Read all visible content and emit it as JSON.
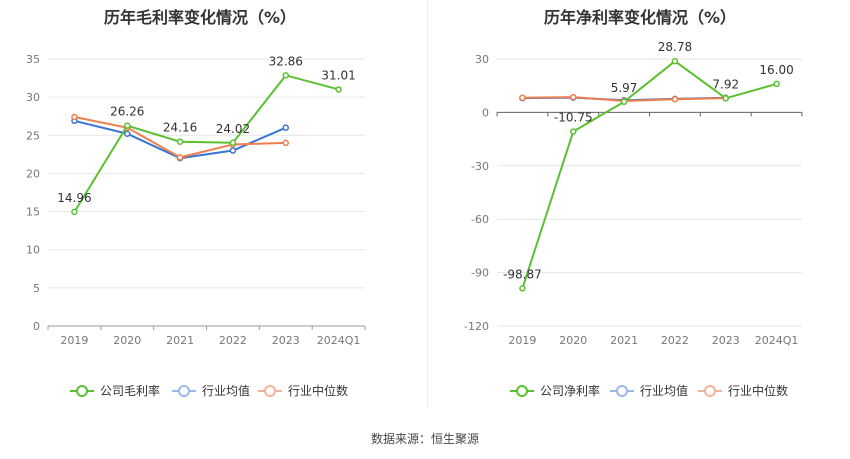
{
  "source_label": "数据来源：恒生聚源",
  "chart_data": [
    {
      "type": "line",
      "title": "历年毛利率变化情况（%）",
      "categories": [
        "2019",
        "2020",
        "2021",
        "2022",
        "2023",
        "2024Q1"
      ],
      "ylim": [
        0,
        35
      ],
      "yticks": [
        0,
        5,
        10,
        15,
        20,
        25,
        30,
        35
      ],
      "grid": true,
      "legend_position": "bottom",
      "series": [
        {
          "name": "公司毛利率",
          "color": "#5ac02f",
          "values": [
            14.96,
            26.26,
            24.16,
            24.02,
            32.86,
            31.01
          ],
          "labels": [
            "14.96",
            "26.26",
            "24.16",
            "24.02",
            "32.86",
            "31.01"
          ]
        },
        {
          "name": "行业均值",
          "color": "#3a74d6",
          "values": [
            26.9,
            25.2,
            22.0,
            23.0,
            26.0,
            null
          ]
        },
        {
          "name": "行业中位数",
          "color": "#ef7e4e",
          "values": [
            27.4,
            26.0,
            22.1,
            23.8,
            24.0,
            null
          ]
        }
      ]
    },
    {
      "type": "line",
      "title": "历年净利率变化情况（%）",
      "categories": [
        "2019",
        "2020",
        "2021",
        "2022",
        "2023",
        "2024Q1"
      ],
      "ylim": [
        -120,
        30
      ],
      "yticks": [
        -120,
        -90,
        -60,
        -30,
        0,
        30
      ],
      "grid": true,
      "legend_position": "bottom",
      "series": [
        {
          "name": "公司净利率",
          "color": "#5ac02f",
          "values": [
            -98.87,
            -10.75,
            5.97,
            28.78,
            7.92,
            16.0
          ],
          "labels": [
            "-98.87",
            "-10.75",
            "5.97",
            "28.78",
            "7.92",
            "16.00"
          ]
        },
        {
          "name": "行业均值",
          "color": "#3a74d6",
          "values": [
            8.0,
            8.3,
            6.8,
            7.6,
            8.2,
            null
          ]
        },
        {
          "name": "行业中位数",
          "color": "#ef7e4e",
          "values": [
            8.2,
            8.6,
            6.4,
            7.4,
            8.0,
            null
          ]
        }
      ]
    }
  ]
}
